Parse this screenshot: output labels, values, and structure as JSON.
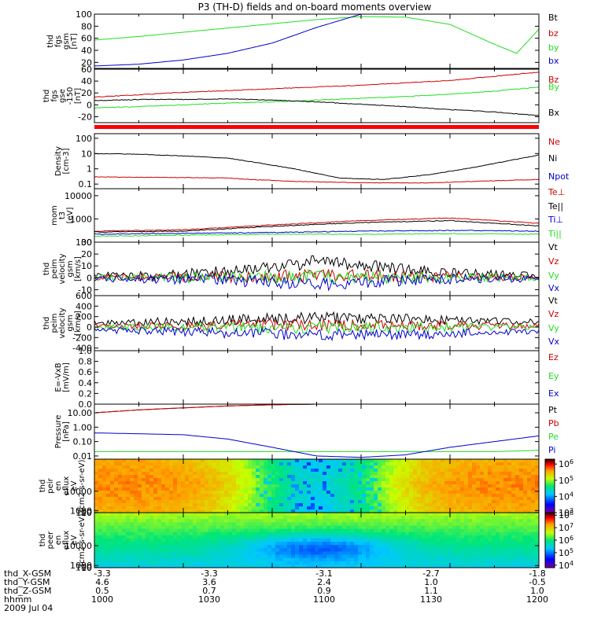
{
  "title": "P3 (TH-D) fields and on-board moments overview",
  "date_label": "2009 Jul 04",
  "footer": {
    "row_labels": [
      "thd_X-GSM",
      "thd_Y-GSM",
      "thd_Z-GSM",
      "hhmm"
    ],
    "columns": [
      [
        "-3.3",
        "4.6",
        "0.5",
        "1000"
      ],
      [
        "-3.3",
        "3.6",
        "0.7",
        "1030"
      ],
      [
        "-3.1",
        "2.4",
        "0.9",
        "1100"
      ],
      [
        "-2.7",
        "1.0",
        "1.1",
        "1130"
      ],
      [
        "-1.8",
        "-0.5",
        "1.0",
        "1200"
      ]
    ]
  },
  "colors": {
    "black": "#000000",
    "red": "#cc0000",
    "green": "#22dd22",
    "blue": "#0000cc",
    "flag_red": "#ff0000"
  },
  "chart_data": [
    {
      "id": "fgs_gsm",
      "type": "line",
      "ylabel": [
        "thd",
        "fgs",
        "gsm",
        "[nT]"
      ],
      "yticks": [
        "100",
        "80",
        "60",
        "40",
        "20"
      ],
      "ylim": [
        10,
        100
      ],
      "x": [
        0,
        0.1,
        0.2,
        0.3,
        0.4,
        0.5,
        0.6,
        0.7,
        0.8,
        0.9,
        0.95,
        1.0
      ],
      "legend": [
        "Bt",
        "bz",
        "by",
        "bx"
      ],
      "series": [
        {
          "name": "by",
          "color": "green",
          "values": [
            57,
            63,
            70,
            77,
            84,
            91,
            96,
            95,
            83,
            50,
            35,
            75
          ]
        },
        {
          "name": "bx",
          "color": "blue",
          "values": [
            14,
            17,
            24,
            35,
            52,
            78,
            100,
            100,
            100,
            100,
            100,
            100
          ]
        }
      ]
    },
    {
      "id": "fgs_gse",
      "type": "line",
      "ylabel": [
        "thd",
        "fgs",
        "gse",
        "-150",
        "[nT]"
      ],
      "yticks": [
        "60",
        "40",
        "20",
        "0",
        "-20"
      ],
      "ylim": [
        -30,
        60
      ],
      "x": [
        0,
        0.1,
        0.2,
        0.3,
        0.4,
        0.5,
        0.6,
        0.7,
        0.8,
        0.9,
        1.0
      ],
      "legend": [
        "Bz",
        "By",
        "Bx"
      ],
      "series": [
        {
          "name": "Bz",
          "color": "red",
          "values": [
            13,
            17,
            21,
            24,
            27,
            30,
            33,
            37,
            41,
            48,
            55
          ]
        },
        {
          "name": "By",
          "color": "green",
          "values": [
            -5,
            -3,
            0,
            3,
            5,
            8,
            11,
            14,
            18,
            23,
            30
          ]
        },
        {
          "name": "Bx",
          "color": "black",
          "values": [
            7,
            9,
            9,
            10,
            8,
            5,
            1,
            -3,
            -8,
            -12,
            -18
          ]
        }
      ]
    },
    {
      "id": "density",
      "type": "line",
      "log": true,
      "ylabel": [
        "Density",
        "[cm-3]"
      ],
      "yticks": [
        "100",
        "10",
        "1",
        "0.1"
      ],
      "ylim": [
        0.05,
        200
      ],
      "x": [
        0,
        0.1,
        0.2,
        0.3,
        0.35,
        0.45,
        0.55,
        0.65,
        0.75,
        0.85,
        1.0
      ],
      "legend": [
        "Ne",
        "Ni",
        "Npot"
      ],
      "series": [
        {
          "name": "Ni",
          "color": "black",
          "values": [
            10,
            9,
            7,
            5,
            3,
            1,
            0.25,
            0.2,
            0.4,
            1.2,
            8
          ]
        },
        {
          "name": "Ne",
          "color": "red",
          "values": [
            0.3,
            0.28,
            0.27,
            0.25,
            0.2,
            0.15,
            0.13,
            0.12,
            0.12,
            0.15,
            0.2
          ]
        }
      ]
    },
    {
      "id": "temperature",
      "type": "line",
      "log": true,
      "ylabel": [
        "mom",
        "t3",
        "[eV]"
      ],
      "yticks": [
        "10000",
        "1000",
        "100"
      ],
      "ylim": [
        100,
        20000
      ],
      "x": [
        0,
        0.2,
        0.4,
        0.6,
        0.8,
        1.0
      ],
      "legend": [
        "Te⊥",
        "Te||",
        "Ti⊥",
        "Ti||"
      ],
      "series": [
        {
          "name": "Te⊥",
          "color": "red",
          "values": [
            300,
            340,
            550,
            850,
            1100,
            650
          ]
        },
        {
          "name": "Te||",
          "color": "black",
          "values": [
            270,
            300,
            480,
            700,
            850,
            500
          ]
        },
        {
          "name": "Ti⊥",
          "color": "blue",
          "values": [
            220,
            240,
            260,
            300,
            320,
            300
          ]
        },
        {
          "name": "Ti||",
          "color": "green",
          "values": [
            180,
            200,
            220,
            220,
            230,
            220
          ]
        }
      ]
    },
    {
      "id": "velocity_esa",
      "type": "line",
      "ylabel": [
        "thd",
        "peim",
        "velocity",
        "gsm",
        "[km/s]"
      ],
      "yticks": [
        "30",
        "20",
        "10",
        "0",
        "-10"
      ],
      "ylim": [
        -15,
        30
      ],
      "x": [
        0,
        0.2,
        0.4,
        0.5,
        0.6,
        0.8,
        1.0
      ],
      "legend": [
        "Vt",
        "Vz",
        "Vy",
        "Vx"
      ],
      "series": [
        {
          "name": "Vt",
          "color": "black",
          "values": [
            2,
            3,
            8,
            14,
            10,
            4,
            2
          ]
        },
        {
          "name": "Vz",
          "color": "red",
          "values": [
            0,
            1,
            1,
            2,
            2,
            1,
            0
          ]
        },
        {
          "name": "Vy",
          "color": "green",
          "values": [
            0,
            0,
            1,
            1,
            0,
            0,
            0
          ]
        },
        {
          "name": "Vx",
          "color": "blue",
          "values": [
            -1,
            -1,
            -3,
            -6,
            -4,
            -1,
            -1
          ]
        }
      ]
    },
    {
      "id": "velocity_ion",
      "type": "line",
      "ylabel": [
        "thd",
        "peim",
        "velocity",
        "gsm",
        "[km/s]"
      ],
      "yticks": [
        "600",
        "400",
        "200",
        "0",
        "-200",
        "-400"
      ],
      "ylim": [
        -450,
        600
      ],
      "x": [
        0,
        0.25,
        0.5,
        0.75,
        1.0
      ],
      "legend": [
        "Vt",
        "Vz",
        "Vy",
        "Vx"
      ],
      "series": [
        {
          "name": "Vt",
          "color": "black",
          "values": [
            80,
            120,
            180,
            150,
            100
          ]
        },
        {
          "name": "Vz",
          "color": "red",
          "values": [
            20,
            30,
            40,
            30,
            20
          ]
        },
        {
          "name": "Vy",
          "color": "green",
          "values": [
            0,
            -10,
            -10,
            -5,
            0
          ]
        },
        {
          "name": "Vx",
          "color": "blue",
          "values": [
            -60,
            -100,
            -150,
            -130,
            -80
          ]
        }
      ]
    },
    {
      "id": "efield",
      "type": "line",
      "ylabel": [
        "E=-VxB",
        "[mV/m]"
      ],
      "yticks": [
        "1.0",
        "0.8",
        "0.6",
        "0.4",
        "0.2",
        "0.0"
      ],
      "ylim": [
        0,
        1
      ],
      "x": [],
      "legend": [
        "Ez",
        "Ey",
        "Ex"
      ],
      "series": []
    },
    {
      "id": "pressure",
      "type": "line",
      "log": true,
      "ylabel": [
        "Pressure",
        "[nPa]"
      ],
      "yticks": [
        "10.00",
        "1.00",
        "0.10",
        "0.01"
      ],
      "ylim": [
        0.006,
        40
      ],
      "x": [
        0,
        0.1,
        0.2,
        0.3,
        0.4,
        0.5,
        0.6,
        0.7,
        0.8,
        0.9,
        1.0
      ],
      "legend": [
        "Pt",
        "Pb",
        "Pe",
        "Pi"
      ],
      "series": [
        {
          "name": "Pt",
          "color": "black",
          "values": [
            10,
            16,
            22,
            30,
            36,
            40,
            40,
            40,
            40,
            40,
            40
          ]
        },
        {
          "name": "Pb",
          "color": "red",
          "values": [
            10,
            16,
            22,
            30,
            36,
            40,
            40,
            40,
            40,
            40,
            40
          ]
        },
        {
          "name": "Pe",
          "color": "green",
          "values": [
            0.02,
            0.02,
            0.02,
            0.02,
            0.02,
            0.02,
            0.02,
            0.02,
            0.02,
            0.02,
            0.025
          ]
        },
        {
          "name": "Pi",
          "color": "blue",
          "values": [
            0.4,
            0.35,
            0.3,
            0.15,
            0.04,
            0.01,
            0.008,
            0.012,
            0.04,
            0.1,
            0.25
          ]
        }
      ]
    },
    {
      "id": "peir_spec",
      "type": "heatmap",
      "ylabel": [
        "thd",
        "peir",
        "en",
        "eflux",
        "eV",
        "(cm2-s-sr-eV)"
      ],
      "yticks": [
        "10000",
        "1000",
        "100",
        "10"
      ],
      "ylim": [
        7,
        25000
      ],
      "colorbar_ticks": [
        "10^6",
        "10^5",
        "10^4",
        "10^3"
      ],
      "colorbar_range": [
        3,
        6.3
      ]
    },
    {
      "id": "peer_spec",
      "type": "heatmap",
      "ylabel": [
        "thd",
        "peer",
        "en",
        "eflux",
        "eV",
        "(cm2-s-sr-eV)"
      ],
      "yticks": [
        "10000",
        "1000",
        "100",
        "10"
      ],
      "ylim": [
        7,
        25000
      ],
      "colorbar_ticks": [
        "10^8",
        "10^7",
        "10^6",
        "10^5",
        "10^4"
      ],
      "colorbar_range": [
        3.8,
        8.2
      ]
    }
  ]
}
